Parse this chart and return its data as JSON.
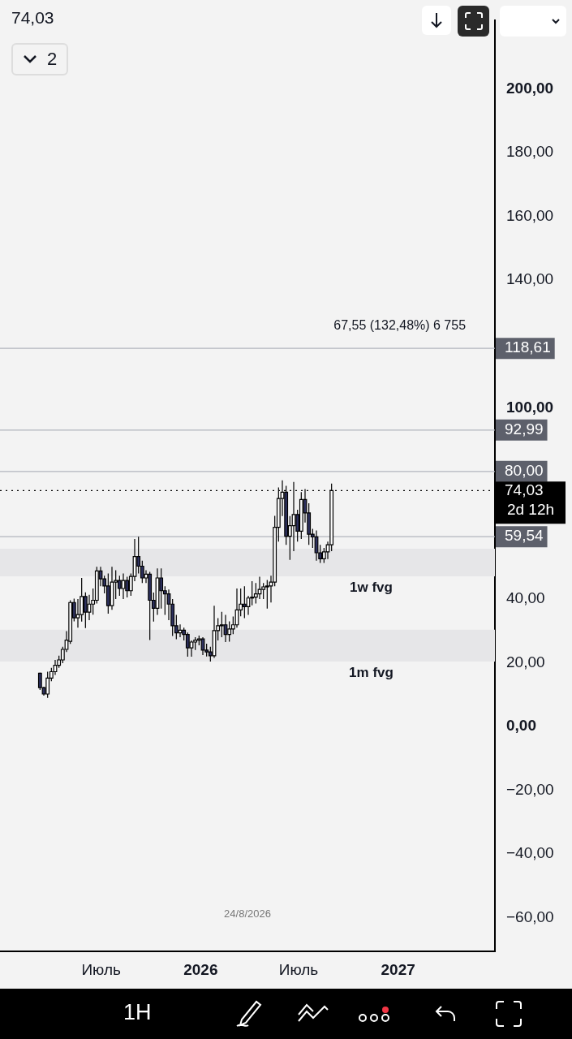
{
  "chart_data": {
    "type": "candlestick",
    "x": [
      "2025-03-10",
      "2025-03-17",
      "2025-03-24",
      "2025-03-31",
      "2025-04-07",
      "2025-04-14",
      "2025-04-21",
      "2025-04-28",
      "2025-05-05",
      "2025-05-12",
      "2025-05-19",
      "2025-05-26",
      "2025-06-02",
      "2025-06-09",
      "2025-06-16",
      "2025-06-23",
      "2025-06-30",
      "2025-07-07",
      "2025-07-14",
      "2025-07-21",
      "2025-07-28",
      "2025-08-04",
      "2025-08-11",
      "2025-08-18",
      "2025-08-25",
      "2025-09-01",
      "2025-09-08",
      "2025-09-15",
      "2025-09-22",
      "2025-09-29",
      "2025-10-06",
      "2025-10-13",
      "2025-10-20",
      "2025-10-27",
      "2025-11-03",
      "2025-11-10",
      "2025-11-17",
      "2025-11-24",
      "2025-12-01",
      "2025-12-08",
      "2025-12-15",
      "2025-12-22",
      "2025-12-29",
      "2026-01-05",
      "2026-01-12",
      "2026-01-19",
      "2026-01-26",
      "2026-02-02",
      "2026-02-09",
      "2026-02-16",
      "2026-02-23",
      "2026-03-02",
      "2026-03-09",
      "2026-03-16",
      "2026-03-23",
      "2026-03-30",
      "2026-04-06",
      "2026-04-13",
      "2026-04-20",
      "2026-04-27",
      "2026-05-04",
      "2026-05-11",
      "2026-05-18",
      "2026-05-25",
      "2026-06-01",
      "2026-06-08",
      "2026-06-15",
      "2026-06-22",
      "2026-06-29",
      "2026-07-06",
      "2026-07-13",
      "2026-07-20",
      "2026-07-27",
      "2026-08-03",
      "2026-08-10",
      "2026-08-17",
      "2026-08-24",
      "2026-08-31"
    ],
    "ohlc": [
      [
        16.7,
        16.9,
        11.5,
        12.2
      ],
      [
        12.2,
        12.5,
        9.7,
        10.2
      ],
      [
        10.2,
        17.2,
        9.0,
        15.2
      ],
      [
        15.2,
        18.4,
        14.2,
        17.2
      ],
      [
        17.2,
        20.9,
        16.2,
        19.2
      ],
      [
        19.2,
        22.2,
        18.4,
        20.9
      ],
      [
        20.9,
        25.0,
        19.9,
        24.2
      ],
      [
        24.2,
        29.9,
        23.4,
        27.1
      ],
      [
        26.7,
        39.6,
        25.9,
        38.9
      ],
      [
        38.9,
        40.1,
        33.0,
        34.1
      ],
      [
        34.1,
        40.0,
        31.0,
        35.1
      ],
      [
        35.1,
        46.6,
        32.9,
        40.8
      ],
      [
        40.8,
        42.1,
        30.9,
        35.9
      ],
      [
        35.9,
        41.3,
        33.4,
        38.4
      ],
      [
        38.4,
        43.3,
        35.1,
        39.6
      ],
      [
        39.6,
        50.1,
        38.6,
        48.8
      ],
      [
        48.8,
        50.1,
        44.0,
        46.3
      ],
      [
        46.3,
        47.3,
        41.8,
        44.1
      ],
      [
        44.1,
        48.0,
        35.4,
        37.9
      ],
      [
        37.9,
        50.1,
        36.6,
        45.3
      ],
      [
        45.3,
        49.0,
        40.0,
        45.8
      ],
      [
        45.8,
        47.3,
        41.0,
        43.3
      ],
      [
        43.3,
        48.0,
        40.0,
        45.8
      ],
      [
        45.8,
        47.0,
        40.5,
        42.6
      ],
      [
        42.6,
        48.0,
        41.0,
        47.1
      ],
      [
        47.1,
        58.8,
        45.6,
        53.3
      ],
      [
        53.3,
        59.5,
        48.0,
        50.3
      ],
      [
        50.3,
        52.0,
        45.0,
        46.6
      ],
      [
        46.6,
        49.0,
        45.0,
        47.8
      ],
      [
        47.8,
        48.5,
        27.1,
        39.6
      ],
      [
        39.6,
        42.0,
        32.9,
        37.1
      ],
      [
        37.1,
        49.6,
        35.0,
        46.6
      ],
      [
        46.6,
        49.6,
        37.0,
        42.6
      ],
      [
        42.6,
        44.0,
        35.0,
        41.6
      ],
      [
        41.6,
        43.0,
        33.4,
        38.4
      ],
      [
        38.4,
        40.0,
        28.4,
        31.6
      ],
      [
        31.6,
        35.0,
        27.4,
        29.4
      ],
      [
        29.4,
        32.0,
        28.0,
        30.2
      ],
      [
        30.2,
        31.0,
        27.0,
        28.9
      ],
      [
        28.9,
        29.5,
        21.9,
        24.7
      ],
      [
        24.7,
        27.0,
        21.9,
        26.5
      ],
      [
        26.5,
        28.0,
        24.0,
        27.1
      ],
      [
        27.1,
        28.5,
        25.5,
        27.5
      ],
      [
        27.5,
        28.0,
        22.4,
        24.0
      ],
      [
        24.0,
        26.0,
        22.0,
        23.4
      ],
      [
        23.4,
        25.0,
        20.4,
        22.2
      ],
      [
        22.2,
        37.9,
        21.5,
        30.1
      ],
      [
        30.1,
        34.0,
        27.0,
        31.6
      ],
      [
        31.6,
        36.0,
        28.0,
        31.9
      ],
      [
        31.9,
        35.0,
        26.5,
        28.9
      ],
      [
        28.9,
        33.0,
        26.6,
        30.6
      ],
      [
        30.6,
        34.5,
        29.0,
        31.9
      ],
      [
        31.9,
        43.3,
        31.0,
        36.6
      ],
      [
        36.6,
        43.3,
        34.6,
        38.4
      ],
      [
        38.4,
        44.0,
        34.0,
        37.6
      ],
      [
        37.6,
        41.0,
        35.0,
        40.3
      ],
      [
        40.3,
        45.6,
        38.0,
        40.6
      ],
      [
        40.6,
        45.0,
        38.6,
        41.6
      ],
      [
        41.6,
        47.0,
        40.0,
        43.0
      ],
      [
        43.0,
        45.0,
        40.0,
        43.8
      ],
      [
        43.8,
        46.0,
        37.0,
        44.1
      ],
      [
        44.1,
        47.3,
        38.9,
        45.3
      ],
      [
        45.3,
        66.1,
        44.0,
        62.5
      ],
      [
        62.5,
        75.0,
        58.0,
        71.5
      ],
      [
        71.5,
        77.2,
        66.0,
        73.5
      ],
      [
        73.5,
        75.5,
        57.0,
        59.7
      ],
      [
        59.7,
        66.0,
        52.3,
        63.0
      ],
      [
        63.0,
        76.7,
        55.0,
        66.5
      ],
      [
        66.5,
        68.0,
        58.0,
        61.3
      ],
      [
        61.3,
        73.5,
        58.8,
        71.2
      ],
      [
        71.2,
        74.5,
        64.0,
        67.0
      ],
      [
        67.0,
        70.0,
        57.0,
        60.3
      ],
      [
        60.3,
        62.0,
        56.0,
        59.5
      ],
      [
        59.5,
        61.5,
        52.0,
        54.5
      ],
      [
        54.5,
        57.0,
        51.3,
        52.6
      ],
      [
        52.6,
        56.0,
        51.3,
        54.8
      ],
      [
        54.8,
        58.0,
        52.5,
        57.0
      ],
      [
        57.0,
        76.2,
        55.0,
        74.03
      ]
    ],
    "xlim": [
      "2024-12-26",
      "2027-06-29"
    ],
    "xticks": [
      {
        "value": "2025-07-01",
        "label": "Июль"
      },
      {
        "value": "2026-01-01",
        "label": "2026"
      },
      {
        "value": "2026-07-01",
        "label": "Июль"
      },
      {
        "value": "2027-01-01",
        "label": "2027"
      }
    ],
    "ylim": [
      -70.5,
      221.4
    ],
    "yticks": [
      {
        "value": -60,
        "label": "−60,00"
      },
      {
        "value": -40,
        "label": "−40,00"
      },
      {
        "value": -20,
        "label": "−20,00"
      },
      {
        "value": 0,
        "label": "0,00"
      },
      {
        "value": 20,
        "label": "20,00"
      },
      {
        "value": 40,
        "label": "40,00"
      },
      {
        "value": 100,
        "label": "100,00"
      },
      {
        "value": 140,
        "label": "140,00"
      },
      {
        "value": 160,
        "label": "160,00"
      },
      {
        "value": 180,
        "label": "180,00"
      },
      {
        "value": 200,
        "label": "200,00"
      }
    ],
    "ref_lines": [
      {
        "axis": "y",
        "value": 118.61,
        "label": "118,61",
        "color": "#b2b5be"
      },
      {
        "axis": "y",
        "value": 92.99,
        "label": "92,99",
        "color": "#b2b5be"
      },
      {
        "axis": "y",
        "value": 80,
        "label": "80,00",
        "color": "#b2b5be"
      },
      {
        "axis": "y",
        "value": 74.03,
        "label": "74,03",
        "color": "#000000",
        "line_style": "dotted"
      },
      {
        "axis": "y",
        "value": 59.54,
        "label": "59,54",
        "color": "#b2b5be"
      }
    ],
    "bands": [
      {
        "axis": "y",
        "from": 20.4,
        "to": 30.4,
        "label": "1m fvg",
        "color": "#e6e6e8"
      },
      {
        "axis": "y",
        "from": 47.1,
        "to": 55.8,
        "label": "1w fvg",
        "color": "#e6e6e8"
      }
    ],
    "annotations": [
      "74,03",
      "2",
      "24/8/2026",
      "2d 12h",
      "1H",
      {
        "text": "67,55 (132,48%) 6 755",
        "x": "2027-01-04",
        "y": 118.61
      }
    ],
    "grid": false,
    "legend": false
  }
}
